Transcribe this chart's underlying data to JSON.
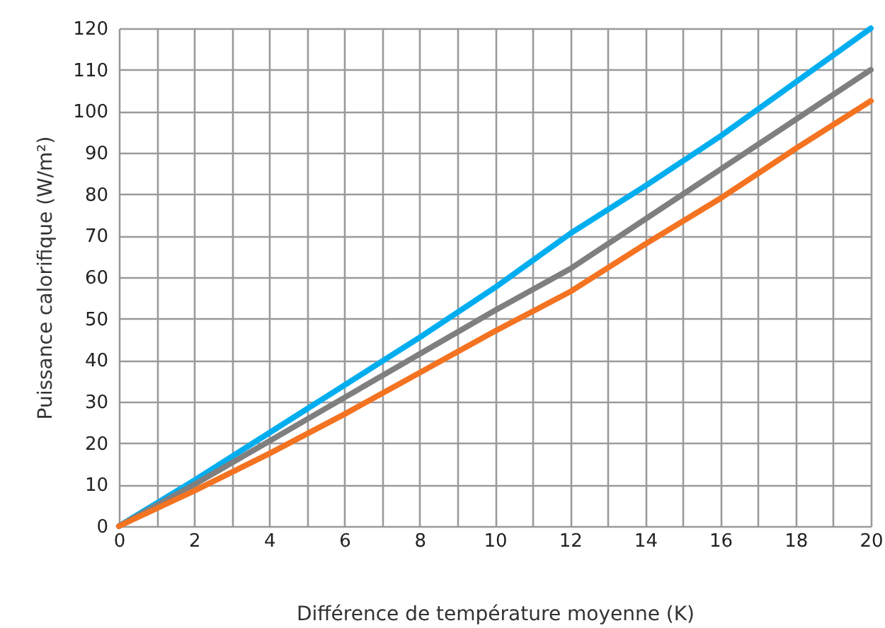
{
  "chart_data": {
    "type": "line",
    "xlabel": "Différence de température moyenne (K)",
    "ylabel": "Puissance calorifique (W/m²)",
    "x": [
      0,
      2,
      4,
      6,
      8,
      10,
      12,
      14,
      16,
      18,
      20
    ],
    "series": [
      {
        "color": "#00aeef",
        "values": [
          0,
          11,
          22.5,
          34,
          45.5,
          57.5,
          70.5,
          82,
          94,
          107,
          120
        ]
      },
      {
        "color": "#7f7f7f",
        "values": [
          0,
          10,
          20.5,
          31,
          41.5,
          52,
          62,
          74,
          86,
          98,
          110
        ]
      },
      {
        "color": "#f47321",
        "values": [
          0,
          8.5,
          17.5,
          27,
          37,
          47,
          56.5,
          68,
          79,
          91,
          102.5
        ]
      }
    ],
    "xlim": [
      0,
      20
    ],
    "ylim": [
      0,
      120
    ],
    "xticks": [
      0,
      {
        "value": 1,
        "label": null
      },
      2,
      {
        "value": 3,
        "label": null
      },
      4,
      {
        "value": 5,
        "label": null
      },
      6,
      {
        "value": 7,
        "label": null
      },
      8,
      {
        "value": 9,
        "label": null
      },
      10,
      {
        "value": 11,
        "label": null
      },
      12,
      {
        "value": 13,
        "label": null
      },
      14,
      {
        "value": 15,
        "label": null
      },
      16,
      {
        "value": 17,
        "label": null
      },
      18,
      {
        "value": 19,
        "label": null
      },
      20
    ],
    "yticks": [
      0,
      10,
      20,
      30,
      40,
      50,
      60,
      70,
      80,
      90,
      100,
      110,
      120
    ],
    "grid": true,
    "line_style": "solid",
    "marker": "none"
  }
}
